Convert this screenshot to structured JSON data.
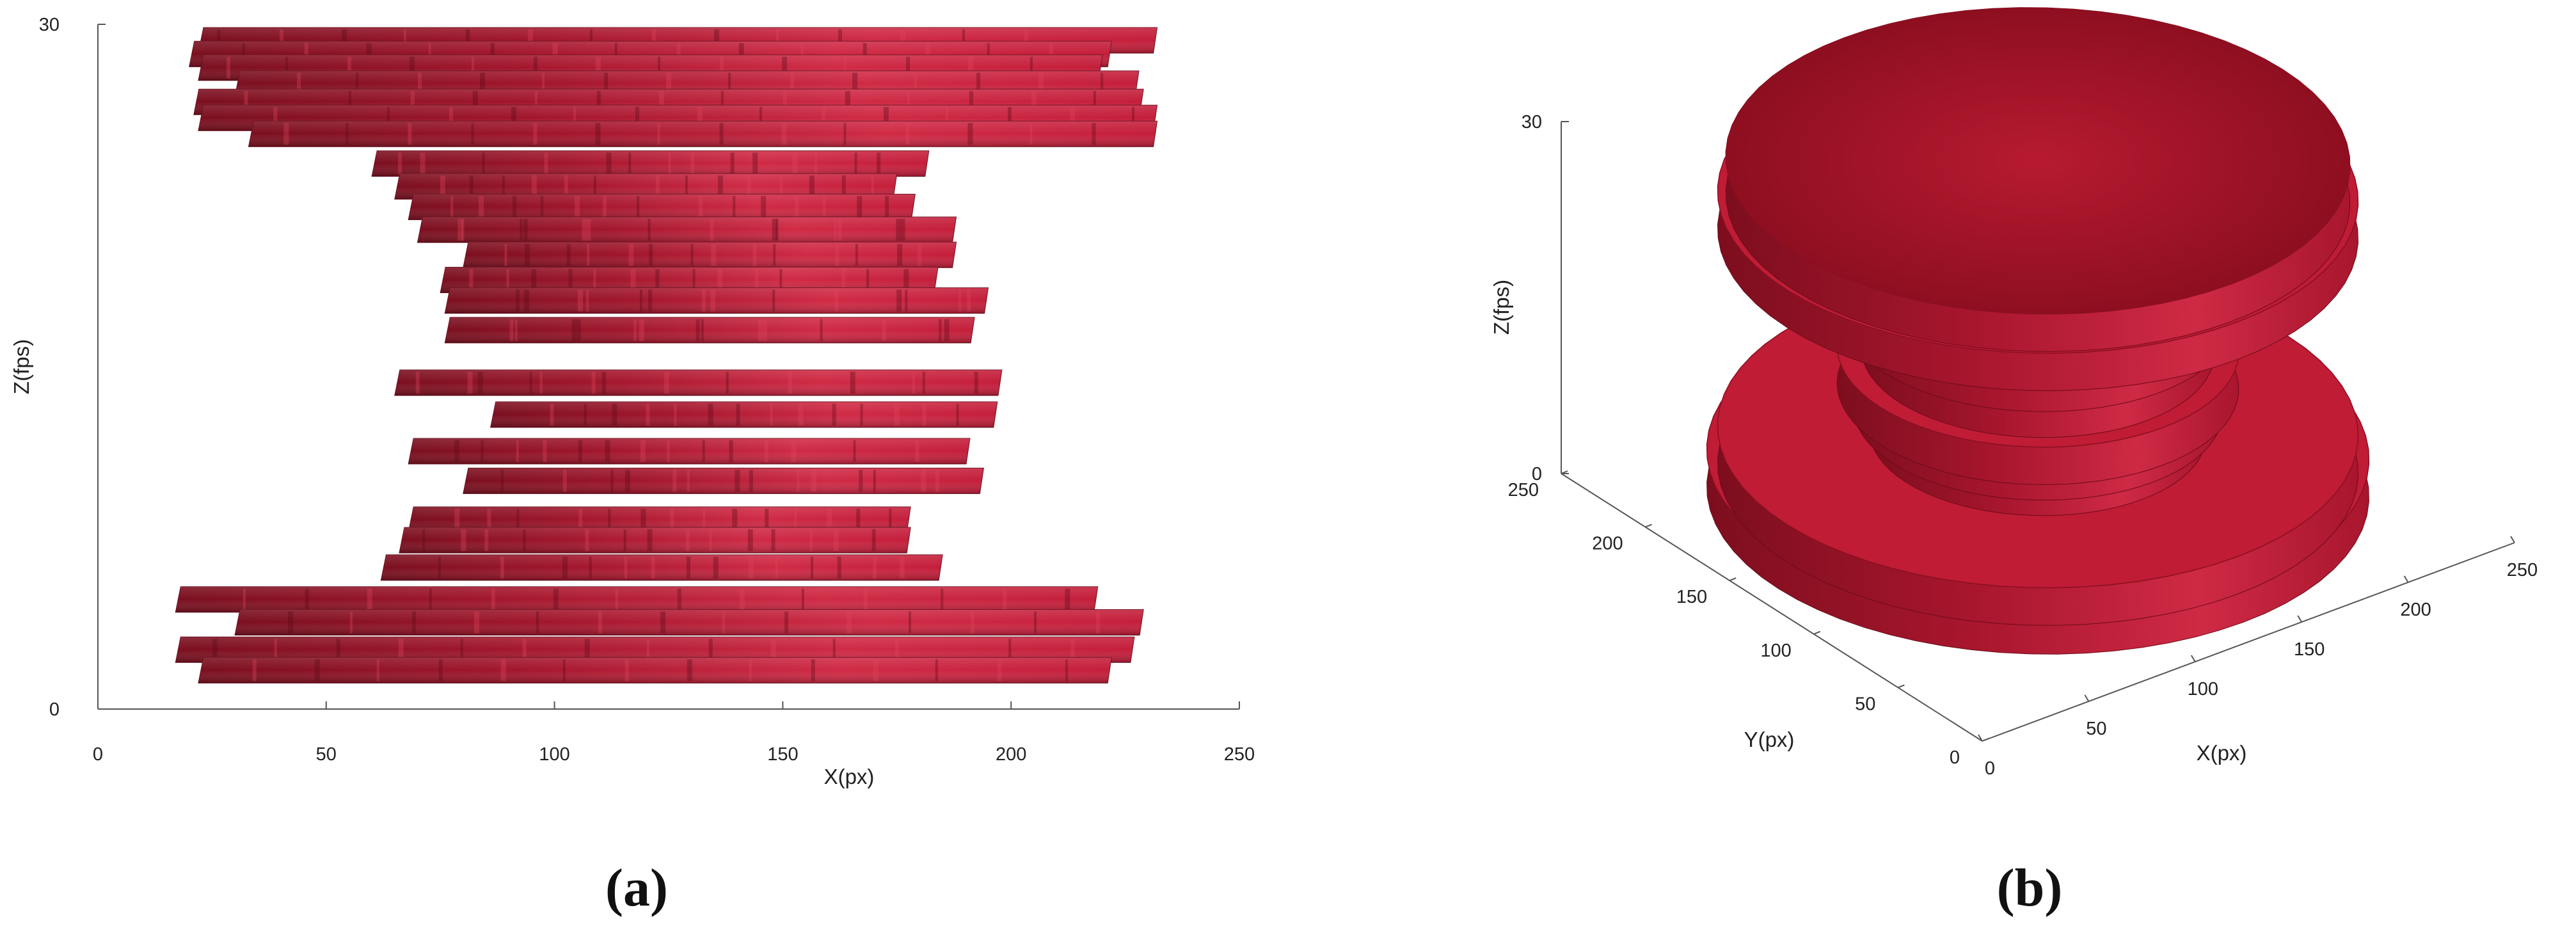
{
  "chart_data": [
    {
      "type": "bar",
      "panel_caption": "(a)",
      "view": "side projection (X vs Z)",
      "xlabel": "X(px)",
      "ylabel": "Z(fps)",
      "xlim": [
        0,
        250
      ],
      "ylim": [
        0,
        30
      ],
      "xticks": [
        "0",
        "50",
        "100",
        "150",
        "200",
        "250"
      ],
      "yticks": [
        "0",
        "30"
      ],
      "bar_color": "#c41e3a",
      "bars": [
        {
          "z": 29.3,
          "x_start": 22,
          "x_end": 232
        },
        {
          "z": 28.7,
          "x_start": 20,
          "x_end": 222
        },
        {
          "z": 28.1,
          "x_start": 22,
          "x_end": 220
        },
        {
          "z": 27.4,
          "x_start": 30,
          "x_end": 228
        },
        {
          "z": 26.6,
          "x_start": 21,
          "x_end": 229
        },
        {
          "z": 25.9,
          "x_start": 22,
          "x_end": 232
        },
        {
          "z": 25.2,
          "x_start": 33,
          "x_end": 232
        },
        {
          "z": 23.9,
          "x_start": 60,
          "x_end": 182
        },
        {
          "z": 22.9,
          "x_start": 65,
          "x_end": 175
        },
        {
          "z": 22.0,
          "x_start": 68,
          "x_end": 179
        },
        {
          "z": 21.0,
          "x_start": 70,
          "x_end": 188
        },
        {
          "z": 19.9,
          "x_start": 80,
          "x_end": 188
        },
        {
          "z": 18.8,
          "x_start": 75,
          "x_end": 184
        },
        {
          "z": 17.9,
          "x_start": 76,
          "x_end": 195
        },
        {
          "z": 16.6,
          "x_start": 76,
          "x_end": 192
        },
        {
          "z": 14.3,
          "x_start": 65,
          "x_end": 198
        },
        {
          "z": 12.9,
          "x_start": 86,
          "x_end": 197
        },
        {
          "z": 11.3,
          "x_start": 68,
          "x_end": 191
        },
        {
          "z": 10.0,
          "x_start": 80,
          "x_end": 194
        },
        {
          "z": 8.3,
          "x_start": 68,
          "x_end": 178
        },
        {
          "z": 7.4,
          "x_start": 66,
          "x_end": 178
        },
        {
          "z": 6.2,
          "x_start": 62,
          "x_end": 185
        },
        {
          "z": 4.8,
          "x_start": 17,
          "x_end": 219
        },
        {
          "z": 3.8,
          "x_start": 30,
          "x_end": 229
        },
        {
          "z": 2.6,
          "x_start": 17,
          "x_end": 227
        },
        {
          "z": 1.7,
          "x_start": 22,
          "x_end": 222
        }
      ]
    },
    {
      "type": "surface3d",
      "panel_caption": "(b)",
      "view": "3D isometric",
      "xlabel": "X(px)",
      "ylabel": "Y(px)",
      "zlabel": "Z(fps)",
      "xlim": [
        0,
        250
      ],
      "ylim": [
        0,
        250
      ],
      "zlim": [
        0,
        30
      ],
      "xticks": [
        "0",
        "50",
        "100",
        "150",
        "200",
        "250"
      ],
      "yticks": [
        "0",
        "50",
        "100",
        "150",
        "200",
        "250"
      ],
      "zticks": [
        "0",
        "30"
      ],
      "surface_color": "#b8162e",
      "rings": [
        {
          "z": 28,
          "radius": 115
        },
        {
          "z": 25,
          "radius": 118
        },
        {
          "z": 21,
          "radius": 64
        },
        {
          "z": 18,
          "radius": 72
        },
        {
          "z": 15,
          "radius": 65
        },
        {
          "z": 12,
          "radius": 74
        },
        {
          "z": 10,
          "radius": 68
        },
        {
          "z": 8,
          "radius": 62
        },
        {
          "z": 5,
          "radius": 118
        },
        {
          "z": 3,
          "radius": 122
        }
      ]
    }
  ]
}
